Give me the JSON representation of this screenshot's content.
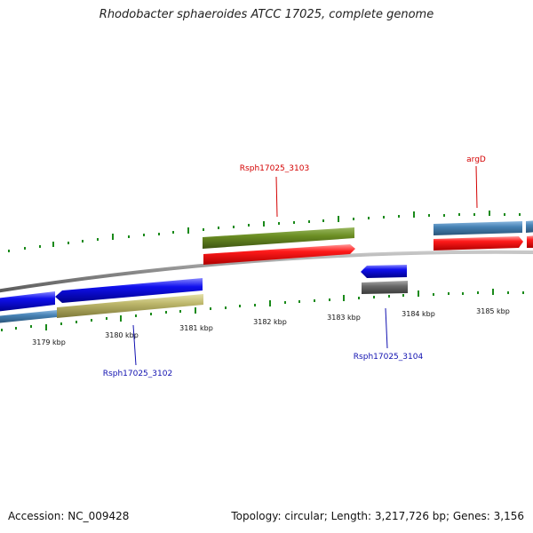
{
  "title": "Rhodobacter sphaeroides ATCC 17025, complete genome",
  "footer": {
    "accession": "Accession: NC_009428",
    "summary": "Topology: circular; Length: 3,217,726 bp; Genes: 3,156"
  },
  "ticks": [
    {
      "label": "3179 kbp"
    },
    {
      "label": "3180 kbp"
    },
    {
      "label": "3181 kbp"
    },
    {
      "label": "3182 kbp"
    },
    {
      "label": "3183 kbp"
    },
    {
      "label": "3184 kbp"
    },
    {
      "label": "3185 kbp"
    }
  ],
  "genes": [
    {
      "label": "Rsph17025_3103",
      "color": "#d40000"
    },
    {
      "label": "argD",
      "color": "#d40000"
    },
    {
      "label": "Rsph17025_3102",
      "color": "#1010b0"
    },
    {
      "label": "Rsph17025_3104",
      "color": "#1010b0"
    }
  ],
  "colors": {
    "forward_gene": "#ff0000",
    "reverse_gene": "#0000ee",
    "rna_olive": "#6b8e23",
    "rna_steel": "#4682b4",
    "rna_khaki": "#bdb76b",
    "rna_gray": "#666666",
    "backbone": "#808080",
    "tick": "#1a8a1a"
  }
}
